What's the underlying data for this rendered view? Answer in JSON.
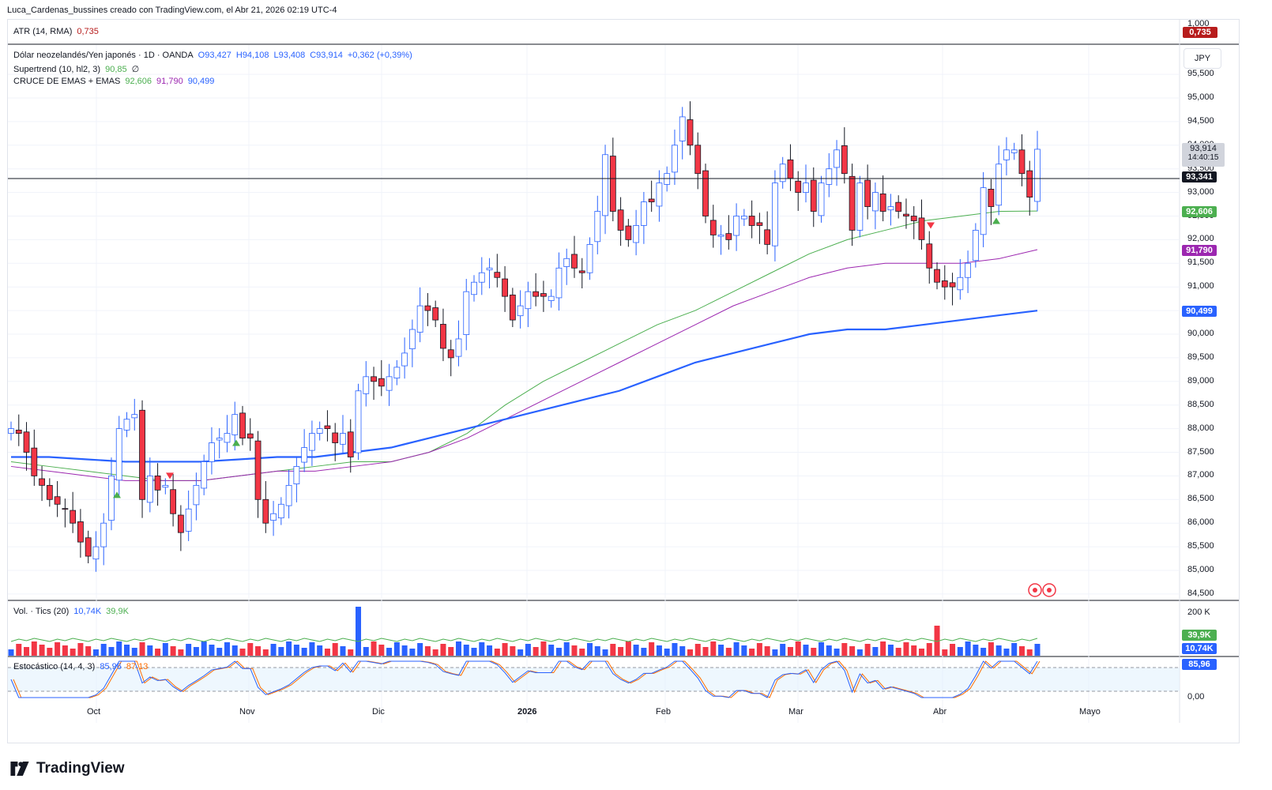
{
  "header": {
    "text": "Luca_Cardenas_bussines creado con TradingView.com, el Abr 21, 2026 02:19 UTC-4"
  },
  "atr": {
    "label": "ATR (14, RMA)",
    "value": "0,735",
    "axis_top": "1,000",
    "tag": "0,735"
  },
  "legend": {
    "symbol": "Dólar neozelandés/Yen japonés · 1D · OANDA",
    "o": "O93,427",
    "h": "H94,108",
    "l": "L93,408",
    "c": "C93,914",
    "change": "+0,362 (+0,39%)",
    "supertrend_label": "Supertrend (10, hl2, 3)",
    "supertrend_value": "90,85",
    "supertrend_extra": "∅",
    "emas_label": "CRUCE DE EMAS + EMAS",
    "ema1": "92,606",
    "ema2": "91,790",
    "ema3": "90,499"
  },
  "currency_button": "JPY",
  "price_axis": {
    "ticks": [
      "95,500",
      "95,000",
      "94,500",
      "94,000",
      "93,500",
      "93,000",
      "92,500",
      "92,000",
      "91,500",
      "91,000",
      "90,500",
      "90,000",
      "89,500",
      "89,000",
      "88,500",
      "88,000",
      "87,500",
      "87,000",
      "86,500",
      "86,000",
      "85,500",
      "85,000",
      "84,500"
    ],
    "last_price_tag": "93,914",
    "countdown": "14:40:15",
    "hline_tag": "93,341",
    "ema1_tag": "92,606",
    "ema2_tag": "91,790",
    "ema3_tag": "90,499"
  },
  "volume": {
    "label": "Vol. · Tics (20)",
    "value": "10,74K",
    "ma": "39,9K",
    "axis_top": "200 K",
    "ma_tag": "39,9K",
    "vol_tag": "10,74K"
  },
  "stoch": {
    "label": "Estocástico (14, 4, 3)",
    "k": "85,96",
    "d": "87,13",
    "tag": "85,96",
    "axis_bottom": "0,00"
  },
  "time_axis": [
    "Oct",
    "Nov",
    "Dic",
    "2026",
    "Feb",
    "Mar",
    "Abr",
    "Mayo"
  ],
  "brand": "TradingView",
  "colors": {
    "up": "#ffffff",
    "down": "#f23645",
    "ema_fast": "#4caf50",
    "ema_mid": "#9c27b0",
    "ema_slow": "#2962ff",
    "vol_up": "#2962ff",
    "vol_down": "#f23645"
  },
  "chart_data": {
    "type": "candlestick",
    "title": "Dólar neozelandés/Yen japonés · 1D · OANDA",
    "ylim": [
      84.4,
      96.0
    ],
    "horizontal_line": 93.341,
    "x": [
      "Oct",
      "Nov",
      "Dic",
      "2026",
      "Feb",
      "Mar",
      "Abr",
      "Mayo"
    ],
    "closes": [
      88.0,
      87.9,
      87.5,
      87.0,
      86.8,
      86.5,
      86.4,
      86.3,
      86.0,
      85.6,
      85.3,
      85.5,
      86.0,
      87.0,
      88.0,
      88.2,
      88.3,
      86.5,
      87.0,
      86.7,
      86.8,
      86.2,
      85.8,
      86.3,
      86.8,
      87.3,
      87.7,
      87.8,
      87.9,
      88.3,
      87.8,
      87.8,
      86.5,
      86.0,
      86.2,
      86.4,
      86.8,
      87.2,
      87.6,
      87.9,
      88.0,
      88.0,
      87.7,
      87.9,
      87.4,
      88.8,
      89.1,
      89.0,
      88.9,
      89.1,
      89.3,
      89.6,
      90.1,
      90.6,
      90.5,
      90.3,
      89.7,
      89.5,
      89.9,
      90.9,
      91.1,
      91.3,
      91.4,
      91.2,
      90.8,
      90.3,
      90.6,
      90.9,
      90.8,
      90.8,
      90.8,
      91.4,
      91.6,
      91.4,
      91.3,
      91.9,
      92.6,
      93.8,
      92.6,
      92.2,
      92.0,
      92.3,
      92.8,
      92.8,
      93.2,
      93.4,
      94.0,
      94.6,
      94.0,
      93.4,
      92.5,
      92.1,
      92.1,
      92.0,
      92.5,
      92.5,
      92.3,
      92.3,
      91.9,
      93.2,
      93.6,
      93.3,
      93.0,
      93.2,
      92.6,
      93.2,
      93.5,
      93.9,
      93.4,
      92.2,
      93.2,
      92.7,
      93.0,
      92.6,
      92.7,
      92.6,
      92.5,
      92.4,
      92.0,
      91.4,
      91.1,
      91.0,
      91.0,
      91.2,
      91.5,
      92.2,
      93.1,
      92.7,
      93.6,
      93.9,
      93.9,
      93.4,
      92.9,
      93.914
    ],
    "ema_fast": [
      87.3,
      87.2,
      87.1,
      87.0,
      86.9,
      86.9,
      87.0,
      87.1,
      87.2,
      87.3,
      87.3,
      87.5,
      87.9,
      88.5,
      89.0,
      89.4,
      89.8,
      90.2,
      90.5,
      90.9,
      91.3,
      91.7,
      92.0,
      92.2,
      92.4,
      92.5,
      92.6,
      92.606
    ],
    "ema_mid": [
      87.2,
      87.1,
      87.0,
      86.9,
      86.9,
      86.9,
      87.0,
      87.1,
      87.1,
      87.2,
      87.3,
      87.5,
      87.8,
      88.2,
      88.6,
      89.0,
      89.4,
      89.8,
      90.2,
      90.6,
      90.9,
      91.2,
      91.4,
      91.5,
      91.5,
      91.5,
      91.6,
      91.79
    ],
    "ema_slow": [
      87.4,
      87.4,
      87.35,
      87.3,
      87.3,
      87.3,
      87.35,
      87.4,
      87.4,
      87.5,
      87.6,
      87.8,
      88.0,
      88.2,
      88.4,
      88.6,
      88.8,
      89.1,
      89.4,
      89.6,
      89.8,
      90.0,
      90.1,
      90.1,
      90.2,
      90.3,
      90.4,
      90.499
    ],
    "stochastic_k_last": 85.96,
    "stochastic_d_last": 87.13,
    "volume_last": "10,74K",
    "volume_ma_last": "39,9K"
  }
}
